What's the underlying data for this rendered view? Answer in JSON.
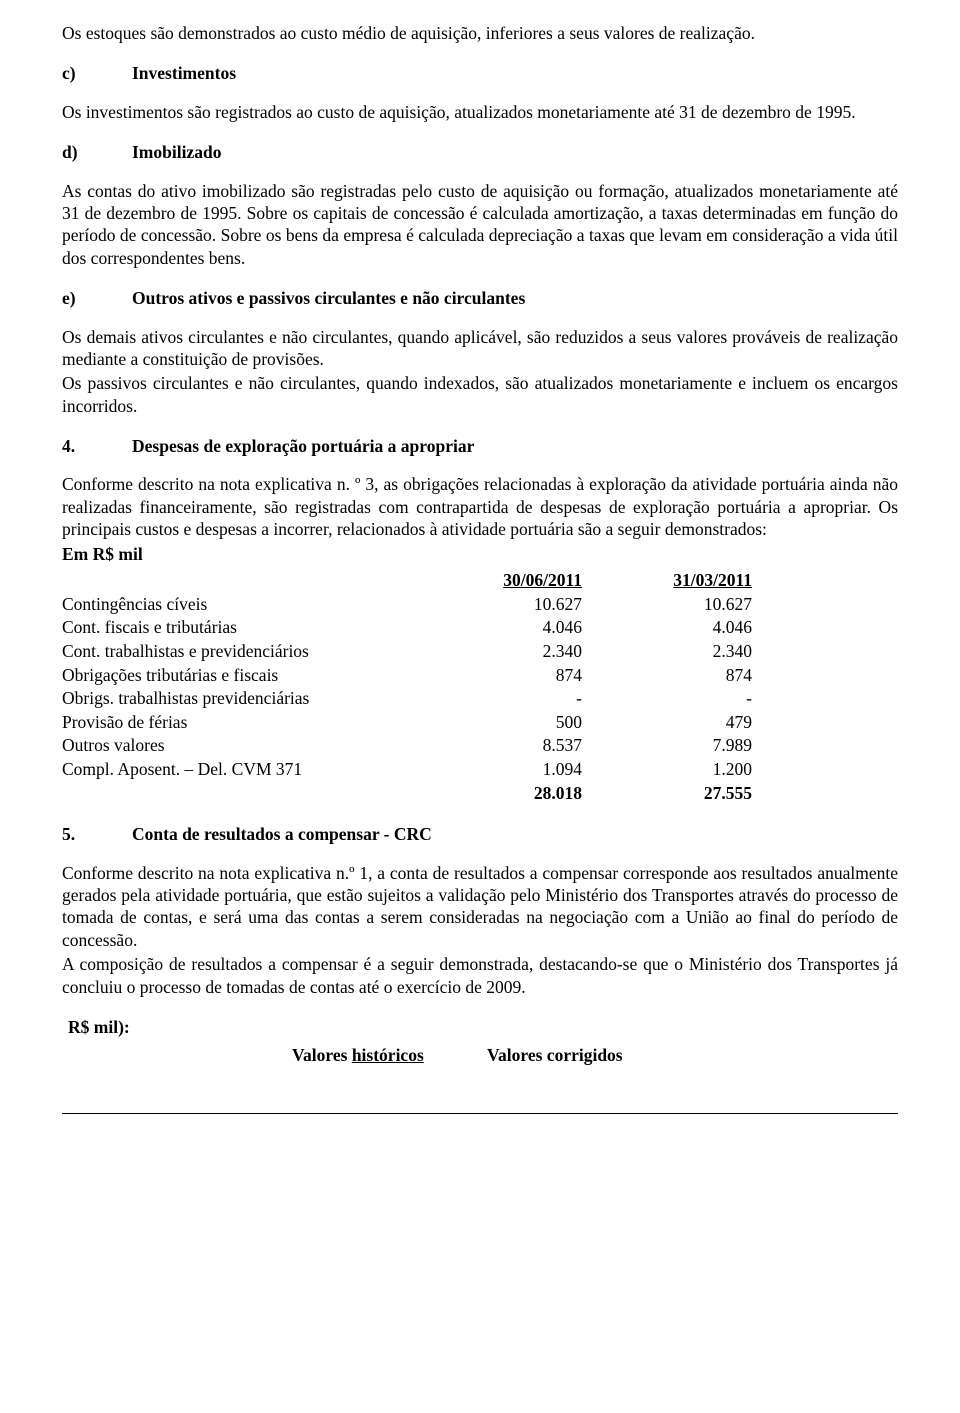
{
  "intro_para": "Os estoques são demonstrados ao custo médio de aquisição, inferiores a seus valores de realização.",
  "sec_c": {
    "label": "c)",
    "title": "Investimentos",
    "text": "Os investimentos são registrados ao custo de aquisição, atualizados monetariamente até 31 de dezembro de 1995."
  },
  "sec_d": {
    "label": "d)",
    "title": "Imobilizado",
    "text": "As contas do ativo imobilizado são registradas pelo custo de aquisição ou formação, atualizados monetariamente até 31 de dezembro de 1995. Sobre os capitais de concessão é calculada amortização, a taxas determinadas em função do período de concessão. Sobre os bens da empresa é calculada depreciação a taxas que levam em consideração a vida útil dos correspondentes bens."
  },
  "sec_e": {
    "label": "e)",
    "title": "Outros ativos e passivos circulantes e não circulantes",
    "p1": "Os demais ativos circulantes e não circulantes, quando aplicável, são reduzidos a seus valores prováveis de realização mediante a constituição de provisões.",
    "p2": "Os passivos circulantes e não circulantes, quando indexados, são atualizados monetariamente e incluem os encargos incorridos."
  },
  "heading4": {
    "num": "4.",
    "text": "Despesas de exploração portuária a apropriar"
  },
  "para4": "Conforme descrito na nota explicativa n. º 3, as obrigações relacionadas à exploração da atividade portuária ainda não realizadas financeiramente, são registradas com contrapartida de despesas de exploração portuária a apropriar. Os principais custos e despesas a incorrer, relacionados à atividade portuária são a seguir demonstrados:",
  "em_rs_mil": "Em R$ mil",
  "expenses": {
    "header": {
      "label": "",
      "d1": "30/06/2011",
      "d2": "31/03/2011"
    },
    "rows": [
      {
        "label": "Contingências cíveis",
        "v1": "10.627",
        "v2": "10.627"
      },
      {
        "label": "Cont. fiscais e tributárias",
        "v1": "4.046",
        "v2": "4.046"
      },
      {
        "label": "Cont. trabalhistas e previdenciários",
        "v1": "2.340",
        "v2": "2.340"
      },
      {
        "label": "Obrigações tributárias e fiscais",
        "v1": "874",
        "v2": "874"
      },
      {
        "label": "Obrigs. trabalhistas previdenciárias",
        "v1": "-",
        "v2": "-"
      },
      {
        "label": "Provisão de férias",
        "v1": "500",
        "v2": "479"
      },
      {
        "label": "Outros valores",
        "v1": "8.537",
        "v2": "7.989"
      },
      {
        "label": "Compl. Aposent. – Del. CVM 371",
        "v1": "1.094",
        "v2": "1.200"
      }
    ],
    "total": {
      "label": "",
      "v1": "28.018",
      "v2": "27.555"
    }
  },
  "heading5": {
    "num": "5.",
    "text": "Conta de resultados a compensar - CRC"
  },
  "para5a": "Conforme descrito na nota explicativa n.º 1, a conta de resultados a compensar corresponde aos resultados anualmente gerados pela atividade portuária, que estão sujeitos a validação pelo Ministério dos Transportes através do processo de tomada de contas, e será uma das contas a serem consideradas na negociação com a União ao final do período de concessão.",
  "para5b": "A composição de resultados a compensar é a seguir demonstrada, destacando-se que o Ministério dos Transportes já concluiu o processo de tomadas de contas até o exercício de 2009.",
  "rs_mil_paren": "R$ mil):",
  "valores": {
    "h1a": "Valores ",
    "h1b": "históricos",
    "h2": "Valores corrigidos"
  }
}
